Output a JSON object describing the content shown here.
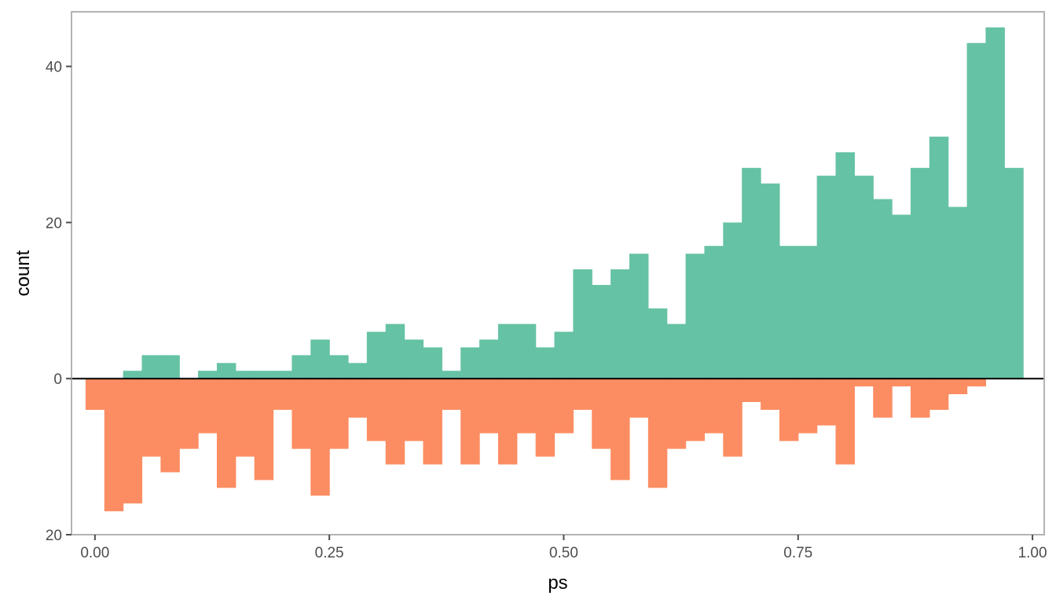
{
  "chart_data": {
    "type": "bar",
    "subtype": "mirrored histogram",
    "xlabel": "ps",
    "ylabel": "count",
    "xlim": [
      -0.025,
      1.0125
    ],
    "ylim": [
      -20,
      47
    ],
    "x_ticks": [
      {
        "value": 0.0,
        "label": "0.00"
      },
      {
        "value": 0.25,
        "label": "0.25"
      },
      {
        "value": 0.5,
        "label": "0.50"
      },
      {
        "value": 0.75,
        "label": "0.75"
      },
      {
        "value": 1.0,
        "label": "1.00"
      }
    ],
    "y_ticks": [
      {
        "value": 40,
        "label": "40"
      },
      {
        "value": 20,
        "label": "20"
      },
      {
        "value": 0,
        "label": "0"
      },
      {
        "value": -20,
        "label": "20"
      }
    ],
    "bin_start": -0.01,
    "bin_width": 0.02,
    "grid": false,
    "panel_border": true,
    "legend": "none",
    "series": [
      {
        "direction": "up",
        "color": "#66c2a5",
        "values": [
          0,
          0,
          1,
          3,
          3,
          0,
          1,
          2,
          1,
          1,
          1,
          3,
          5,
          3,
          2,
          6,
          7,
          5,
          4,
          1,
          4,
          5,
          7,
          7,
          4,
          6,
          14,
          12,
          14,
          16,
          9,
          7,
          16,
          17,
          20,
          27,
          25,
          17,
          17,
          26,
          29,
          26,
          23,
          21,
          27,
          31,
          22,
          43,
          45,
          27
        ]
      },
      {
        "direction": "down",
        "color": "#fc8d62",
        "values": [
          4,
          17,
          16,
          10,
          12,
          9,
          7,
          14,
          10,
          13,
          4,
          9,
          15,
          9,
          5,
          8,
          11,
          8,
          11,
          4,
          11,
          7,
          11,
          7,
          10,
          7,
          4,
          9,
          13,
          5,
          14,
          9,
          8,
          7,
          10,
          3,
          4,
          8,
          7,
          6,
          11,
          1,
          5,
          1,
          5,
          4,
          2,
          1,
          0,
          0
        ]
      }
    ]
  }
}
